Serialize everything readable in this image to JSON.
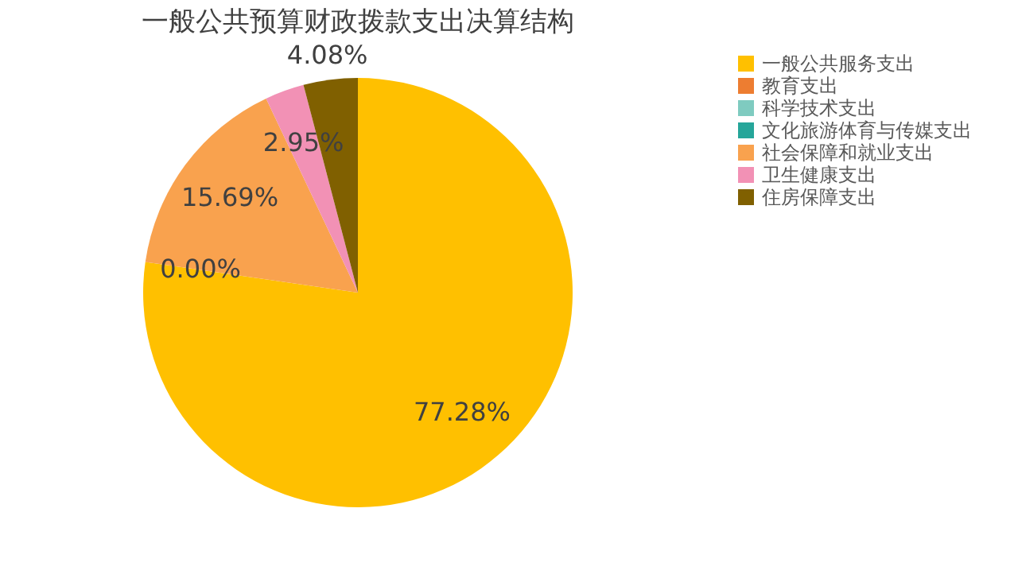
{
  "chart_data": {
    "type": "pie",
    "title": "一般公共预算财政拨款支出决算结构",
    "categories": [
      "一般公共服务支出",
      "教育支出",
      "科学技术支出",
      "文化旅游体育与传媒支出",
      "社会保障和就业支出",
      "卫生健康支出",
      "住房保障支出"
    ],
    "values": [
      77.28,
      0,
      0,
      0,
      15.69,
      2.95,
      4.08
    ],
    "colors": [
      "#ffc000",
      "#ed7d31",
      "#7fcbc0",
      "#26a69a",
      "#f9a24e",
      "#f291b5",
      "#806000"
    ],
    "value_labels": [
      "77.28%",
      null,
      null,
      "0.00%",
      "15.69%",
      "2.95%",
      "4.08%"
    ],
    "legend": "right"
  }
}
